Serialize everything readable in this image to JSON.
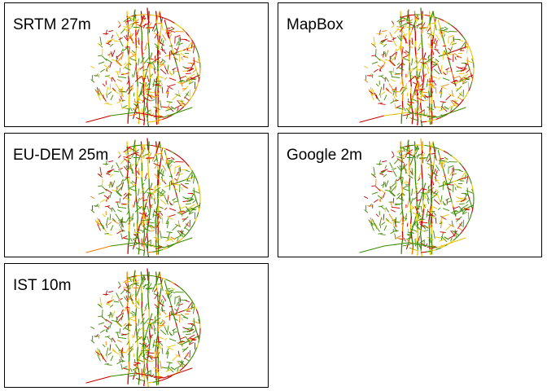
{
  "panels": [
    {
      "title": "SRTM 27m",
      "mix": {
        "green": 0.3,
        "yellow": 0.38,
        "red": 0.32
      }
    },
    {
      "title": "MapBox",
      "mix": {
        "green": 0.28,
        "yellow": 0.4,
        "red": 0.32
      }
    },
    {
      "title": "EU-DEM 25m",
      "mix": {
        "green": 0.52,
        "yellow": 0.28,
        "red": 0.2
      }
    },
    {
      "title": "Google 2m",
      "mix": {
        "green": 0.55,
        "yellow": 0.25,
        "red": 0.2
      }
    },
    {
      "title": "IST 10m",
      "mix": {
        "green": 0.58,
        "yellow": 0.24,
        "red": 0.18
      }
    }
  ],
  "colors": {
    "green": "#3a8a00",
    "yellow": "#e8c400",
    "orange": "#f08000",
    "red": "#cc0000"
  }
}
